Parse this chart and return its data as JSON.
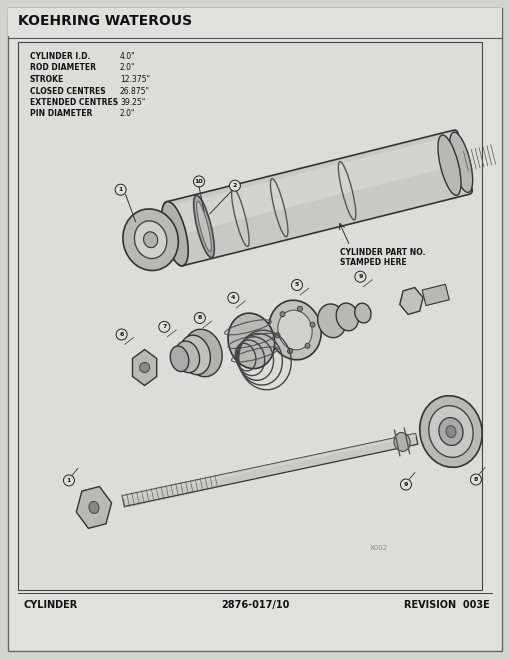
{
  "title": "KOEHRING WATEROUS",
  "bg_color": "#d8d8d8",
  "page_bg": "#e8e8e4",
  "inner_bg": "#dcdcd8",
  "border_color": "#555555",
  "specs": [
    [
      "CYLINDER I.D.",
      "4.0\""
    ],
    [
      "ROD DIAMETER",
      "2.0\""
    ],
    [
      "STROKE",
      "12.375\""
    ],
    [
      "CLOSED CENTRES",
      "26.875\""
    ],
    [
      "EXTENDED CENTRES",
      "39.25\""
    ],
    [
      "PIN DIAMETER",
      "2.0\""
    ]
  ],
  "cylinder_note": "CYLINDER PART NO.\nSTAMPED HERE",
  "footer_left": "CYLINDER",
  "footer_center": "2876-017/10",
  "footer_right": "REVISION  003E",
  "watermark": "X002"
}
